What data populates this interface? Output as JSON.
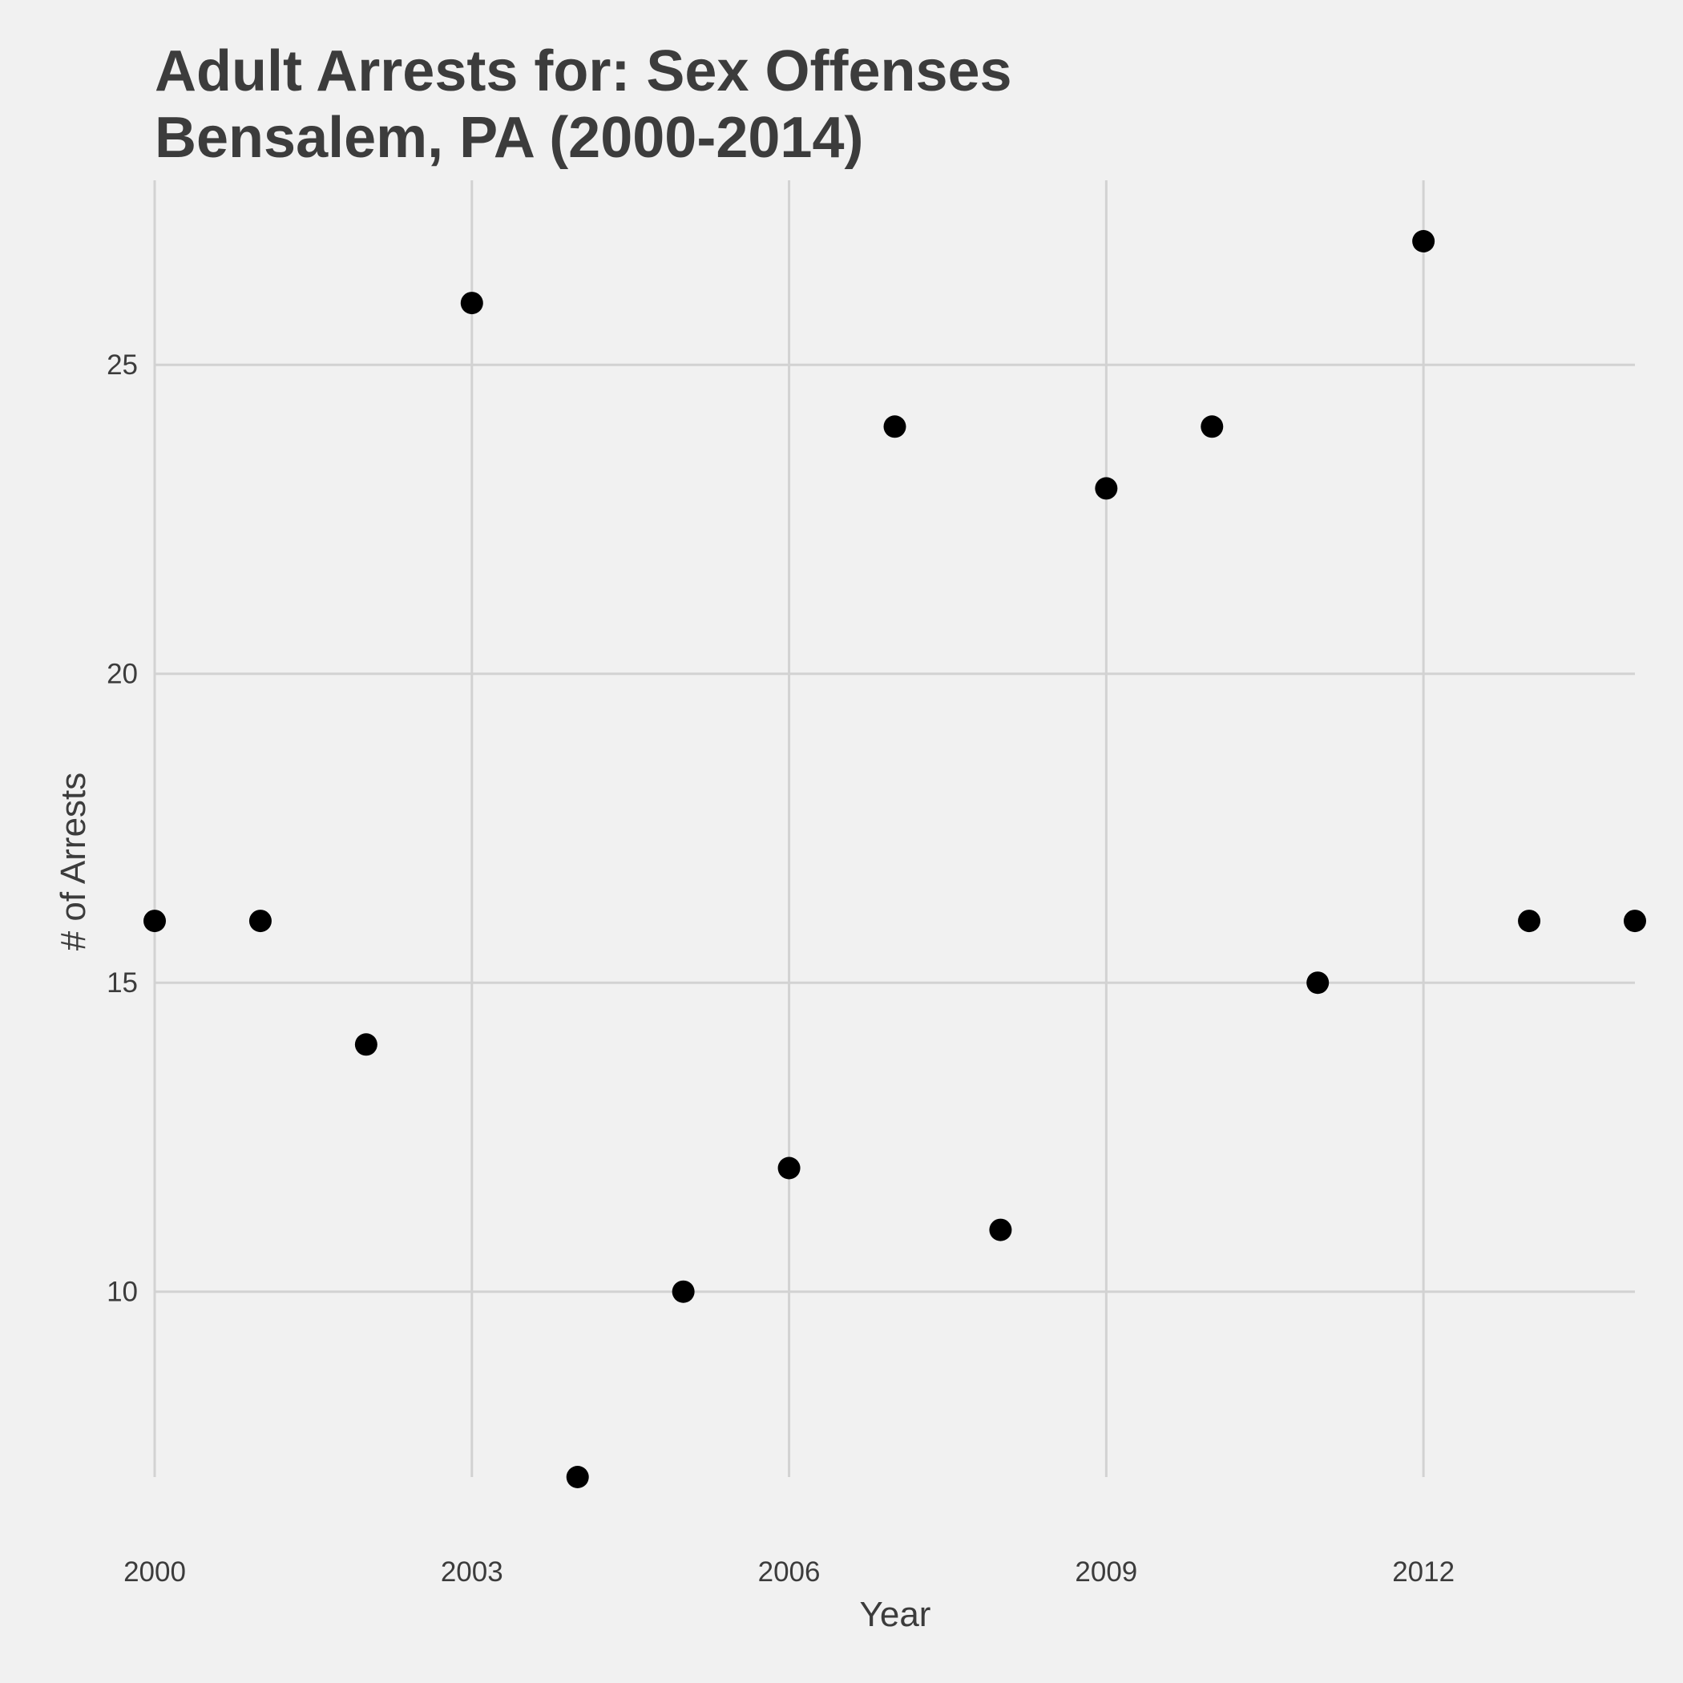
{
  "chart_data": {
    "type": "scatter",
    "title_lines": [
      "Adult Arrests for: Sex Offenses",
      "Bensalem, PA (2000-2014)"
    ],
    "xlabel": "Year",
    "ylabel": "# of Arrests",
    "x": [
      2000,
      2001,
      2002,
      2003,
      2004,
      2005,
      2006,
      2007,
      2008,
      2009,
      2010,
      2011,
      2012,
      2013,
      2014
    ],
    "y": [
      16,
      16,
      14,
      26,
      7,
      10,
      12,
      24,
      11,
      23,
      24,
      15,
      27,
      16,
      16
    ],
    "xlim": [
      2000,
      2014
    ],
    "ylim": [
      7,
      27
    ],
    "x_ticks": [
      2000,
      2003,
      2006,
      2009,
      2012
    ],
    "y_ticks": [
      10,
      15,
      20,
      25
    ],
    "grid": true,
    "legend": "none",
    "colors": {
      "background": "#f1f1f1",
      "grid": "#d2d2d2",
      "point": "#000000",
      "text": "#3c3c3c"
    }
  }
}
